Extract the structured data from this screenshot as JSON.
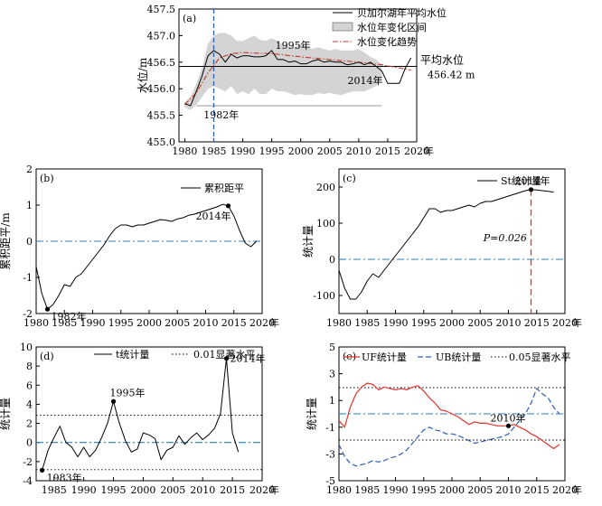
{
  "chart_data": [
    {
      "type": "line",
      "panel_label": "(a)",
      "ylabel": "水位/m",
      "x_unit": "年",
      "xlim": [
        1979,
        2020
      ],
      "ylim": [
        455.0,
        457.5
      ],
      "xticks": [
        1980,
        1985,
        1990,
        1995,
        2000,
        2005,
        2010,
        2015,
        2020
      ],
      "yticks": [
        455.0,
        455.5,
        456.0,
        456.5,
        457.0,
        457.5
      ],
      "series": [
        {
          "name": "贝加尔湖年平均水位",
          "color": "#000000",
          "x": [
            1980,
            1981,
            1982,
            1983,
            1984,
            1985,
            1986,
            1987,
            1988,
            1989,
            1990,
            1991,
            1992,
            1993,
            1994,
            1995,
            1996,
            1997,
            1998,
            1999,
            2000,
            2001,
            2002,
            2003,
            2004,
            2005,
            2006,
            2007,
            2008,
            2009,
            2010,
            2011,
            2012,
            2013,
            2014,
            2015,
            2016,
            2017,
            2018,
            2019
          ],
          "values": [
            455.72,
            455.68,
            455.95,
            456.25,
            456.62,
            456.72,
            456.65,
            456.5,
            456.65,
            456.58,
            456.62,
            456.62,
            456.6,
            456.6,
            456.62,
            456.72,
            456.55,
            456.55,
            456.5,
            456.52,
            456.47,
            456.47,
            456.52,
            456.55,
            456.5,
            456.52,
            456.5,
            456.5,
            456.45,
            456.47,
            456.5,
            456.45,
            456.5,
            456.42,
            456.33,
            456.1,
            456.1,
            456.1,
            456.38,
            456.58
          ]
        },
        {
          "name": "水位年变化区间",
          "type": "area",
          "color": "#d4d4d4",
          "x": [
            1980,
            1981,
            1982,
            1983,
            1984,
            1985,
            1986,
            1987,
            1988,
            1989,
            1990,
            1991,
            1992,
            1993,
            1994,
            1995,
            1996,
            1997,
            1998,
            1999,
            2000,
            2001,
            2002,
            2003,
            2004,
            2005,
            2006,
            2007,
            2008,
            2009,
            2010,
            2011,
            2012,
            2013,
            2014
          ],
          "upper": [
            455.75,
            455.85,
            456.1,
            456.4,
            456.85,
            457.0,
            457.05,
            457.05,
            457.0,
            456.9,
            456.9,
            456.95,
            457.0,
            456.92,
            456.9,
            456.95,
            456.9,
            456.82,
            456.8,
            456.78,
            456.85,
            456.8,
            456.75,
            456.78,
            456.75,
            456.72,
            456.75,
            456.72,
            456.72,
            456.72,
            456.75,
            456.68,
            456.6,
            456.55,
            456.45
          ],
          "lower": [
            455.65,
            455.6,
            455.7,
            455.85,
            456.0,
            456.05,
            456.0,
            455.95,
            456.05,
            455.9,
            455.95,
            455.9,
            456.0,
            455.9,
            455.9,
            456.0,
            455.95,
            455.95,
            455.92,
            455.88,
            455.9,
            455.88,
            455.88,
            455.92,
            455.9,
            455.92,
            455.9,
            455.88,
            455.92,
            455.95,
            455.95,
            455.95,
            456.0,
            456.05,
            456.15
          ]
        },
        {
          "name": "水位变化趋势",
          "color": "#c0392b",
          "x": [
            1980,
            1982,
            1984,
            1986,
            1988,
            1990,
            1995,
            2000,
            2005,
            2010,
            2014,
            2019
          ],
          "values": [
            455.7,
            455.92,
            456.3,
            456.58,
            456.66,
            456.68,
            456.66,
            456.6,
            456.55,
            456.5,
            456.45,
            456.35
          ]
        }
      ],
      "mean_level": 456.42,
      "mean_label": "平均水位",
      "mean_value_label": "456.42 m",
      "gray_line": 455.68,
      "vline_x": 1985,
      "annotations": [
        {
          "text": "1982年",
          "x": 1982,
          "y": 455.68
        },
        {
          "text": "1995年",
          "x": 1995,
          "y": 456.72
        },
        {
          "text": "2014年",
          "x": 2014,
          "y": 456.33
        }
      ]
    },
    {
      "type": "line",
      "panel_label": "(b)",
      "ylabel": "累积距平/m",
      "x_unit": "年",
      "xlim": [
        1980,
        2020
      ],
      "ylim": [
        -2,
        2
      ],
      "xticks": [
        1980,
        1985,
        1990,
        1995,
        2000,
        2005,
        2010,
        2015,
        2020
      ],
      "yticks": [
        -2,
        -1,
        0,
        1,
        2
      ],
      "zero_line": 0,
      "series": [
        {
          "name": "累积距平",
          "color": "#000000",
          "x": [
            1980,
            1981,
            1982,
            1983,
            1984,
            1985,
            1986,
            1987,
            1988,
            1989,
            1990,
            1991,
            1992,
            1993,
            1994,
            1995,
            1996,
            1997,
            1998,
            1999,
            2000,
            2001,
            2002,
            2003,
            2004,
            2005,
            2006,
            2007,
            2008,
            2009,
            2010,
            2011,
            2012,
            2013,
            2014,
            2015,
            2016,
            2017,
            2018,
            2019
          ],
          "values": [
            -0.7,
            -1.45,
            -1.88,
            -1.75,
            -1.5,
            -1.2,
            -1.25,
            -1.0,
            -0.9,
            -0.7,
            -0.5,
            -0.3,
            -0.1,
            0.15,
            0.35,
            0.45,
            0.45,
            0.4,
            0.45,
            0.45,
            0.5,
            0.55,
            0.6,
            0.58,
            0.55,
            0.62,
            0.65,
            0.72,
            0.75,
            0.8,
            0.85,
            0.9,
            0.95,
            1.02,
            0.98,
            0.7,
            0.3,
            -0.05,
            -0.15,
            0.0
          ]
        }
      ],
      "annotations": [
        {
          "text": "1982年",
          "x": 1982,
          "y": -1.88
        },
        {
          "text": "2014年",
          "x": 2014,
          "y": 0.98
        }
      ]
    },
    {
      "type": "line",
      "panel_label": "(c)",
      "ylabel": "统计量",
      "x_unit": "年",
      "xlim": [
        1980,
        2020
      ],
      "ylim": [
        -150,
        250
      ],
      "xticks": [
        1980,
        1985,
        1990,
        1995,
        2000,
        2005,
        2010,
        2015,
        2020
      ],
      "yticks": [
        -100,
        0,
        100,
        200
      ],
      "zero_line": 0,
      "vline_x": 2014,
      "series": [
        {
          "name": "St统计量",
          "color": "#000000",
          "x": [
            1980,
            1981,
            1982,
            1983,
            1984,
            1985,
            1986,
            1987,
            1988,
            1989,
            1990,
            1991,
            1992,
            1993,
            1994,
            1995,
            1996,
            1997,
            1998,
            1999,
            2000,
            2001,
            2002,
            2003,
            2004,
            2005,
            2006,
            2007,
            2008,
            2009,
            2010,
            2011,
            2012,
            2013,
            2014,
            2015,
            2016,
            2017,
            2018
          ],
          "values": [
            -30,
            -80,
            -110,
            -110,
            -90,
            -60,
            -40,
            -50,
            -30,
            -10,
            10,
            30,
            50,
            70,
            90,
            115,
            140,
            140,
            130,
            135,
            135,
            140,
            145,
            150,
            145,
            155,
            160,
            160,
            165,
            170,
            175,
            180,
            185,
            190,
            193,
            192,
            190,
            188,
            186
          ]
        }
      ],
      "annotations": [
        {
          "text": "2014年",
          "x": 2014,
          "y": 193
        },
        {
          "text": "P=0.026",
          "x": 2011,
          "y": 50
        }
      ]
    },
    {
      "type": "line",
      "panel_label": "(d)",
      "ylabel": "统计量",
      "x_unit": "年",
      "xlim": [
        1982,
        2020
      ],
      "ylim": [
        -4,
        10
      ],
      "xticks": [
        1985,
        1990,
        1995,
        2000,
        2005,
        2010,
        2015,
        2020
      ],
      "yticks": [
        -4,
        -2,
        0,
        2,
        4,
        6,
        8,
        10
      ],
      "zero_line": 0,
      "threshold_lines": [
        2.85,
        -2.85
      ],
      "series": [
        {
          "name": "t统计量",
          "color": "#000000",
          "x": [
            1983,
            1984,
            1985,
            1986,
            1987,
            1988,
            1989,
            1990,
            1991,
            1992,
            1993,
            1994,
            1995,
            1996,
            1997,
            1998,
            1999,
            2000,
            2001,
            2002,
            2003,
            2004,
            2005,
            2006,
            2007,
            2008,
            2009,
            2010,
            2011,
            2012,
            2013,
            2014,
            2015,
            2016
          ],
          "values": [
            -2.9,
            -0.8,
            0.5,
            1.7,
            0.0,
            -0.5,
            -1.5,
            -0.5,
            -1.5,
            -0.8,
            0.5,
            2.0,
            4.3,
            2.0,
            0.2,
            -1.0,
            -0.7,
            1.0,
            0.8,
            0.4,
            -1.8,
            -0.8,
            -0.5,
            0.7,
            -0.2,
            0.5,
            1.0,
            0.3,
            0.8,
            1.5,
            3.0,
            8.8,
            1.0,
            -1.0
          ]
        },
        {
          "name": "0.01显著水平",
          "style": "dotted",
          "color": "#000000"
        }
      ],
      "annotations": [
        {
          "text": "1983年",
          "x": 1983,
          "y": -2.9
        },
        {
          "text": "1995年",
          "x": 1995,
          "y": 4.3
        },
        {
          "text": "2014年",
          "x": 2014,
          "y": 8.8
        }
      ]
    },
    {
      "type": "line",
      "panel_label": "(e)",
      "ylabel": "统计量",
      "x_unit": "年",
      "xlim": [
        1980,
        2020
      ],
      "ylim": [
        -5,
        5
      ],
      "xticks": [
        1980,
        1985,
        1990,
        1995,
        2000,
        2005,
        2010,
        2015,
        2020
      ],
      "yticks": [
        -5,
        -3,
        -1,
        1,
        3,
        5
      ],
      "threshold_lines": [
        1.96,
        -1.96
      ],
      "series": [
        {
          "name": "UF统计量",
          "color": "#e0322b",
          "x": [
            1980,
            1981,
            1982,
            1983,
            1984,
            1985,
            1986,
            1987,
            1988,
            1989,
            1990,
            1991,
            1992,
            1993,
            1994,
            1995,
            1996,
            1997,
            1998,
            1999,
            2000,
            2001,
            2002,
            2003,
            2004,
            2005,
            2006,
            2007,
            2008,
            2009,
            2010,
            2011,
            2012,
            2013,
            2014,
            2015,
            2016,
            2017,
            2018,
            2019
          ],
          "values": [
            -0.5,
            -1.0,
            0.5,
            1.5,
            2.0,
            2.3,
            2.2,
            1.8,
            2.0,
            1.9,
            1.8,
            1.9,
            1.8,
            2.0,
            2.1,
            1.7,
            1.2,
            0.8,
            0.3,
            0.2,
            0.0,
            -0.2,
            -0.5,
            -0.8,
            -0.6,
            -0.7,
            -0.7,
            -0.8,
            -0.9,
            -0.9,
            -0.9,
            -0.8,
            -1.0,
            -1.2,
            -1.5,
            -1.7,
            -2.0,
            -2.3,
            -2.6,
            -2.3
          ]
        },
        {
          "name": "UB统计量",
          "color": "#2b5fb3",
          "x": [
            1980,
            1981,
            1982,
            1983,
            1984,
            1985,
            1986,
            1987,
            1988,
            1989,
            1990,
            1991,
            1992,
            1993,
            1994,
            1995,
            1996,
            1997,
            1998,
            1999,
            2000,
            2001,
            2002,
            2003,
            2004,
            2005,
            2006,
            2007,
            2008,
            2009,
            2010,
            2011,
            2012,
            2013,
            2014,
            2015,
            2016,
            2017,
            2018,
            2019
          ],
          "values": [
            -2.3,
            -3.2,
            -3.7,
            -3.9,
            -3.8,
            -3.7,
            -3.5,
            -3.6,
            -3.5,
            -3.3,
            -3.2,
            -3.0,
            -2.7,
            -2.2,
            -1.7,
            -1.2,
            -1.0,
            -1.2,
            -1.3,
            -1.5,
            -1.5,
            -1.6,
            -1.8,
            -2.0,
            -2.2,
            -2.1,
            -2.0,
            -1.9,
            -1.8,
            -1.7,
            -1.5,
            -1.0,
            -0.5,
            0.0,
            0.8,
            1.9,
            1.5,
            1.2,
            0.5,
            0.0
          ]
        },
        {
          "name": "0.05显著水平",
          "style": "dotted",
          "color": "#000000"
        }
      ],
      "annotations": [
        {
          "text": "2010年",
          "x": 2010,
          "y": -0.9
        }
      ]
    }
  ]
}
